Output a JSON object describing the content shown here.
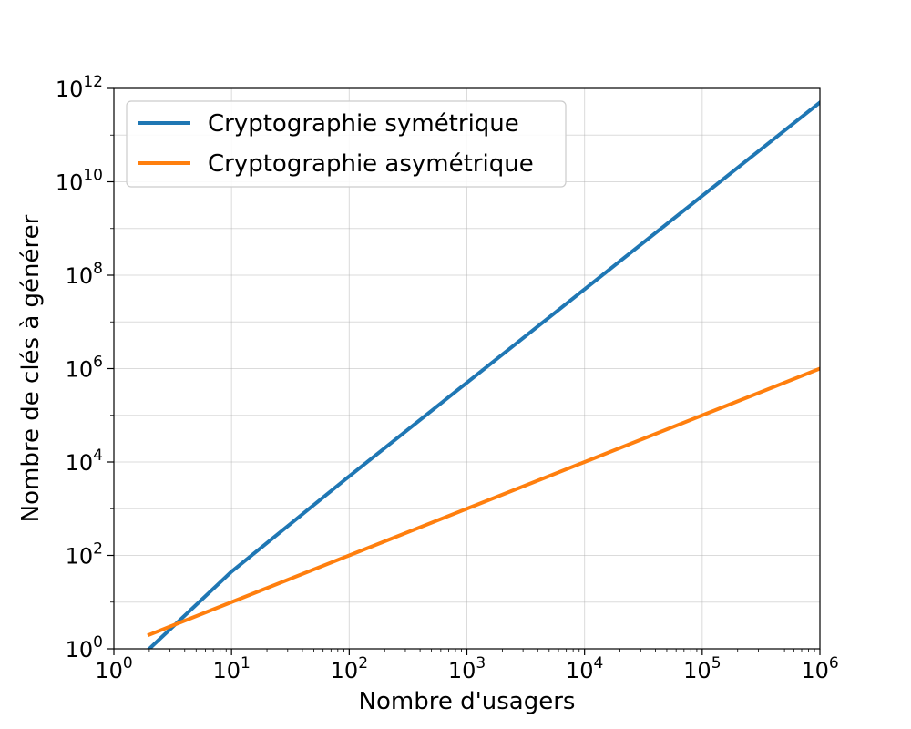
{
  "chart_data": {
    "type": "line",
    "xlabel": "Nombre d'usagers",
    "ylabel": "Nombre de clés à générer",
    "xscale": "log",
    "yscale": "log",
    "xlim": [
      1,
      1000000
    ],
    "ylim": [
      1,
      1000000000000
    ],
    "grid": true,
    "legend_position": "top-left",
    "x_ticks": [
      {
        "base": "10",
        "exp": "0",
        "value": 1
      },
      {
        "base": "10",
        "exp": "1",
        "value": 10
      },
      {
        "base": "10",
        "exp": "2",
        "value": 100
      },
      {
        "base": "10",
        "exp": "3",
        "value": 1000
      },
      {
        "base": "10",
        "exp": "4",
        "value": 10000
      },
      {
        "base": "10",
        "exp": "5",
        "value": 100000
      },
      {
        "base": "10",
        "exp": "6",
        "value": 1000000
      }
    ],
    "y_ticks": [
      {
        "base": "10",
        "exp": "0",
        "value": 1
      },
      {
        "base": "10",
        "exp": "2",
        "value": 100
      },
      {
        "base": "10",
        "exp": "4",
        "value": 10000
      },
      {
        "base": "10",
        "exp": "6",
        "value": 1000000
      },
      {
        "base": "10",
        "exp": "8",
        "value": 100000000
      },
      {
        "base": "10",
        "exp": "10",
        "value": 10000000000
      },
      {
        "base": "10",
        "exp": "12",
        "value": 1000000000000
      }
    ],
    "series": [
      {
        "name": "Cryptographie symétrique",
        "color": "#1f77b4",
        "x": [
          2,
          10,
          100,
          1000,
          10000,
          100000,
          1000000
        ],
        "y": [
          1,
          45,
          4950,
          499500,
          49995000,
          4999950000,
          499999500000
        ]
      },
      {
        "name": "Cryptographie asymétrique",
        "color": "#ff7f0e",
        "x": [
          2,
          10,
          100,
          1000,
          10000,
          100000,
          1000000
        ],
        "y": [
          2,
          10,
          100,
          1000,
          10000,
          100000,
          1000000
        ]
      }
    ]
  }
}
